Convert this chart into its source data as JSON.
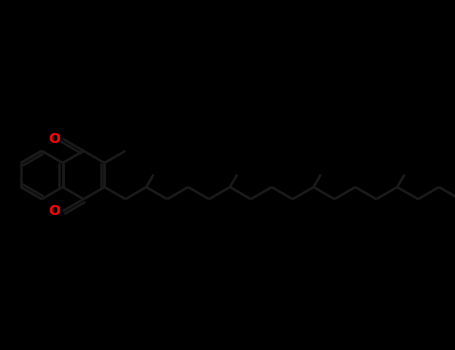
{
  "background_color": "#000000",
  "bond_color": "#1a1a1a",
  "o_color": "#ff0000",
  "o_fontsize": 10,
  "lw": 1.8,
  "fig_width": 4.55,
  "fig_height": 3.5,
  "dpi": 100
}
